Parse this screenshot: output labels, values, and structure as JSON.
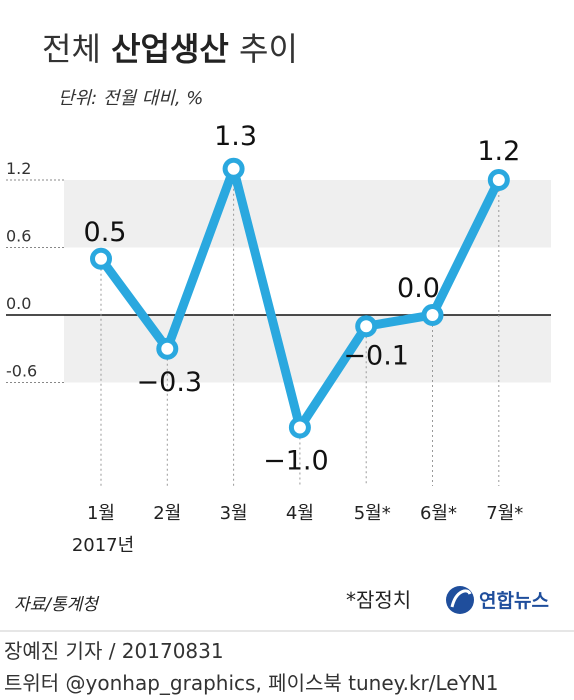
{
  "header": {
    "title_normal_1": "전체 ",
    "title_bold": "산업생산",
    "title_normal_2": " 추이",
    "unit": "단위: 전월 대비, %"
  },
  "chart_data": {
    "type": "line",
    "categories": [
      "1월",
      "2월",
      "3월",
      "4월",
      "5월*",
      "6월*",
      "7월*"
    ],
    "year_label": "2017년",
    "values": [
      0.5,
      -0.3,
      1.3,
      -1.0,
      -0.1,
      0.0,
      1.2
    ],
    "value_labels": [
      "0.5",
      "−0.3",
      "1.3",
      "−1.0",
      "−0.1",
      "0.0",
      "1.2"
    ],
    "yticks": [
      "1.2",
      "0.6",
      "0.0",
      "-0.6"
    ],
    "ytick_values": [
      1.2,
      0.6,
      0.0,
      -0.6
    ],
    "ylim": [
      -1.0,
      1.3
    ],
    "line_color": "#2aa8df",
    "band_color": "#efefef"
  },
  "notes": {
    "source": "자료/통계청",
    "preliminary": "*잠정치",
    "logo": "연합뉴스"
  },
  "footer": {
    "credit": "장예진 기자 / 20170831",
    "sns": "트위터 @yonhap_graphics, 페이스북 tuney.kr/LeYN1"
  },
  "colors": {
    "line": "#2aa8df",
    "band": "#efefef",
    "logo": "#1f4e9c"
  }
}
